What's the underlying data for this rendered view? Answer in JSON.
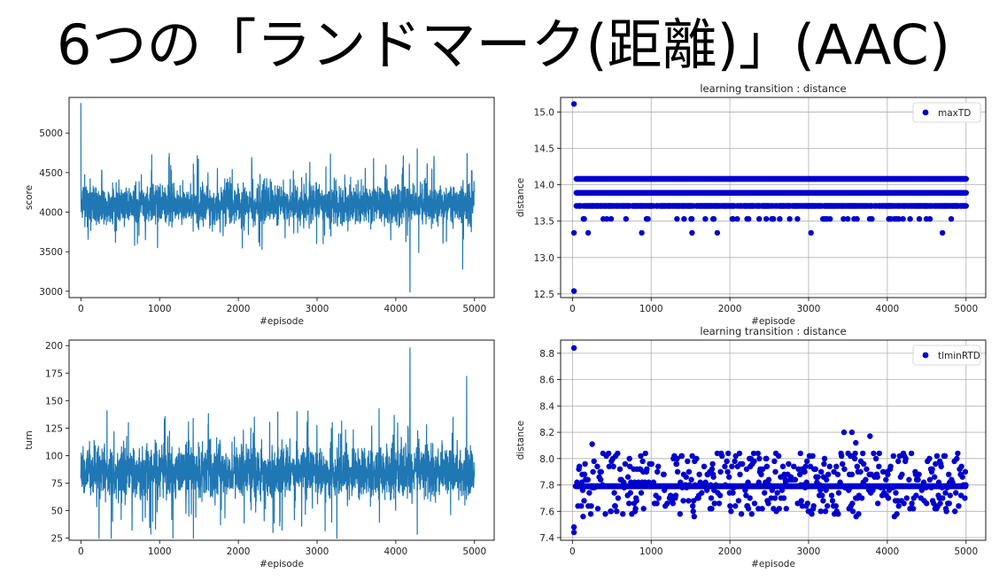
{
  "page_title": "6つの「ランドマーク(距離)」(AAC)",
  "chart_data": [
    {
      "type": "line",
      "title": "",
      "xlabel": "#episode",
      "ylabel": "score",
      "xlim": [
        -150,
        5250
      ],
      "ylim": [
        2920,
        5450
      ],
      "xticks": [
        0,
        1000,
        2000,
        3000,
        4000,
        5000
      ],
      "yticks": [
        3000,
        3500,
        4000,
        4500,
        5000
      ],
      "grid": false,
      "color": "#1f77b4",
      "n_points": 5000,
      "series": [
        {
          "name": "",
          "baseline": 4100,
          "spread": 230,
          "key_points": [
            [
              0,
              5380
            ],
            [
              4180,
              2990
            ],
            [
              2170,
              4690
            ],
            [
              4850,
              3280
            ]
          ]
        }
      ]
    },
    {
      "type": "scatter",
      "title": "learning transition : distance",
      "xlabel": "#episode",
      "ylabel": "distance",
      "xlim": [
        -150,
        5250
      ],
      "ylim": [
        12.45,
        15.2
      ],
      "xticks": [
        0,
        1000,
        2000,
        3000,
        4000,
        5000
      ],
      "yticks": [
        12.5,
        13.0,
        13.5,
        14.0,
        14.5,
        15.0
      ],
      "grid": true,
      "legend_position": "top-right",
      "color": "#0000cc",
      "series": [
        {
          "name": "maxTD",
          "levels": [
            14.08,
            13.89,
            13.71,
            13.53,
            13.34
          ],
          "outliers": [
            [
              20,
              15.11
            ],
            [
              20,
              12.54
            ],
            [
              20,
              13.34
            ],
            [
              200,
              13.34
            ],
            [
              880,
              13.34
            ],
            [
              1520,
              13.34
            ],
            [
              1840,
              13.34
            ],
            [
              3030,
              13.34
            ],
            [
              4700,
              13.34
            ]
          ]
        }
      ]
    },
    {
      "type": "line",
      "title": "",
      "xlabel": "#episode",
      "ylabel": "turn",
      "xlim": [
        -150,
        5250
      ],
      "ylim": [
        23,
        205
      ],
      "xticks": [
        0,
        1000,
        2000,
        3000,
        4000,
        5000
      ],
      "yticks": [
        25,
        50,
        75,
        100,
        125,
        150,
        175,
        200
      ],
      "grid": false,
      "color": "#1f77b4",
      "n_points": 5000,
      "series": [
        {
          "name": "",
          "baseline": 85,
          "spread": 22,
          "key_points": [
            [
              4180,
              198
            ],
            [
              2440,
              30
            ],
            [
              4900,
              172
            ],
            [
              650,
              32
            ]
          ]
        }
      ]
    },
    {
      "type": "scatter",
      "title": "learning transition : distance",
      "xlabel": "#episode",
      "ylabel": "distance",
      "xlim": [
        -150,
        5250
      ],
      "ylim": [
        7.38,
        8.9
      ],
      "xticks": [
        0,
        1000,
        2000,
        3000,
        4000,
        5000
      ],
      "yticks": [
        7.4,
        7.6,
        7.8,
        8.0,
        8.2,
        8.4,
        8.6,
        8.8
      ],
      "grid": true,
      "legend_position": "top-right",
      "color": "#0000cc",
      "series": [
        {
          "name": "tlminRTD",
          "band": [
            7.56,
            8.05
          ],
          "dense_level": 7.79,
          "outliers": [
            [
              20,
              8.84
            ],
            [
              20,
              7.44
            ],
            [
              20,
              7.48
            ],
            [
              250,
              8.11
            ],
            [
              3450,
              8.2
            ],
            [
              3550,
              8.2
            ],
            [
              3780,
              8.17
            ],
            [
              3600,
              8.12
            ]
          ]
        }
      ]
    }
  ]
}
